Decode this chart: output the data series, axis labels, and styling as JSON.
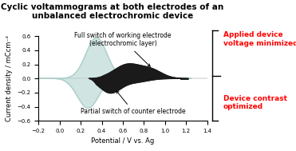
{
  "title": "Cyclic voltammograms at both electrodes of an\nunbalanced electrochromic device",
  "xlabel": "Potential / V vs. Ag",
  "ylabel": "Current density / mCcm⁻²",
  "xlim": [
    -0.2,
    1.4
  ],
  "ylim": [
    -0.6,
    0.6
  ],
  "xticks": [
    -0.2,
    0.0,
    0.2,
    0.4,
    0.6,
    0.8,
    1.0,
    1.2,
    1.4
  ],
  "yticks": [
    -0.6,
    -0.4,
    -0.2,
    0.0,
    0.2,
    0.4,
    0.6
  ],
  "light_color": "#aacfca",
  "dark_color": "#1a1a1a",
  "annotation1": "Full switch of working electrode\n(electrochromic layer)",
  "annotation2": "Partial switch of counter electrode",
  "right_text1": "Applied device\nvoltage minimized",
  "right_text2": "Device contrast\noptimized",
  "title_fontsize": 7.5,
  "label_fontsize": 6,
  "annotation_fontsize": 5.5,
  "tick_fontsize": 5
}
